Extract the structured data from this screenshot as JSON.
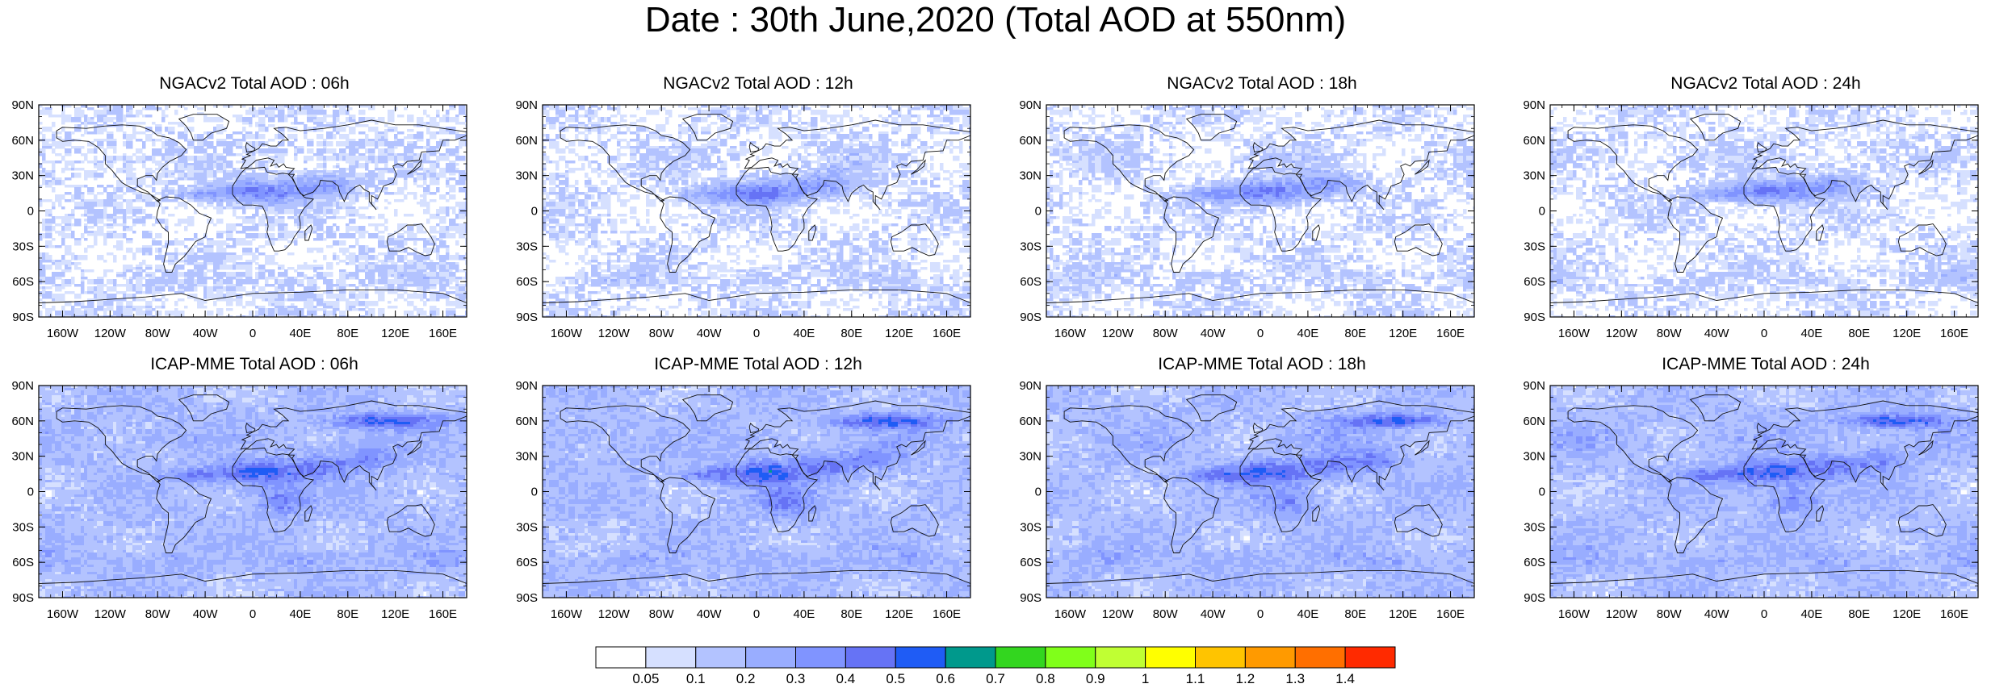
{
  "title": "Date : 30th June,2020 (Total AOD at 550nm)",
  "chart_data": {
    "type": "heatmap",
    "x_ticks": [
      "160W",
      "120W",
      "80W",
      "40W",
      "0",
      "40E",
      "80E",
      "120E",
      "160E"
    ],
    "y_ticks": [
      "90N",
      "60N",
      "30N",
      "0",
      "30S",
      "60S",
      "90S"
    ],
    "xlim": [
      -180,
      180
    ],
    "ylim": [
      -90,
      90
    ],
    "panels": [
      {
        "title": "NGACv2 Total AOD : 06h",
        "model": "NGACv2",
        "hour": "06h"
      },
      {
        "title": "NGACv2 Total AOD : 12h",
        "model": "NGACv2",
        "hour": "12h"
      },
      {
        "title": "NGACv2 Total AOD : 18h",
        "model": "NGACv2",
        "hour": "18h"
      },
      {
        "title": "NGACv2 Total AOD : 24h",
        "model": "NGACv2",
        "hour": "24h"
      },
      {
        "title": "ICAP-MME Total AOD : 06h",
        "model": "ICAP-MME",
        "hour": "06h"
      },
      {
        "title": "ICAP-MME Total AOD : 12h",
        "model": "ICAP-MME",
        "hour": "12h"
      },
      {
        "title": "ICAP-MME Total AOD : 18h",
        "model": "ICAP-MME",
        "hour": "18h"
      },
      {
        "title": "ICAP-MME Total AOD : 24h",
        "model": "ICAP-MME",
        "hour": "24h"
      }
    ],
    "colorbar": {
      "levels": [
        "0.05",
        "0.1",
        "0.2",
        "0.3",
        "0.4",
        "0.5",
        "0.6",
        "0.7",
        "0.8",
        "0.9",
        "1",
        "1.1",
        "1.2",
        "1.3",
        "1.4"
      ],
      "colors": [
        "#ffffff",
        "#d6e0ff",
        "#b3c3ff",
        "#99adff",
        "#8094ff",
        "#6673f5",
        "#1f5cf5",
        "#00998c",
        "#33d61f",
        "#80ff1a",
        "#c0ff33",
        "#ffff00",
        "#ffc400",
        "#ff9a00",
        "#ff6f00",
        "#ff2a00"
      ]
    }
  }
}
